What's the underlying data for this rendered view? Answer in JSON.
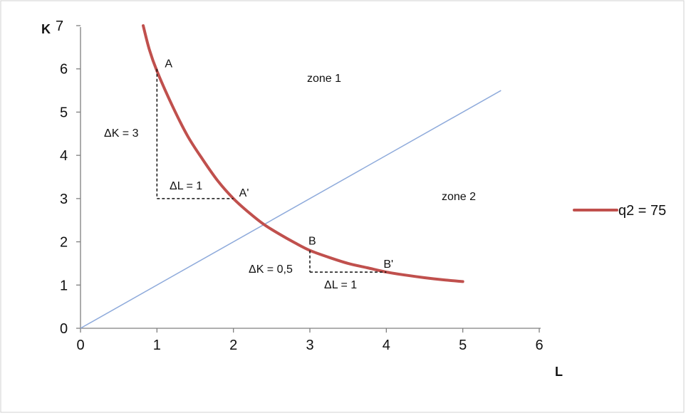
{
  "chart_data": {
    "type": "line",
    "xlabel": "L",
    "ylabel": "K",
    "xlim": [
      0,
      6
    ],
    "ylim": [
      0,
      7
    ],
    "x_ticks": [
      "0",
      "1",
      "2",
      "3",
      "4",
      "5",
      "6"
    ],
    "y_ticks": [
      "0",
      "1",
      "2",
      "3",
      "4",
      "5",
      "6",
      "7"
    ],
    "grid": false,
    "legend_position": "right",
    "series": [
      {
        "name": "q2 = 75",
        "color": "#c0504d",
        "x": [
          0.82,
          0.9,
          1.0,
          1.2,
          1.4,
          1.6,
          1.8,
          2.0,
          2.2,
          2.4,
          2.6,
          2.8,
          3.0,
          3.25,
          3.5,
          3.75,
          4.0,
          4.25,
          4.5,
          4.75,
          5.0
        ],
        "y": [
          7.0,
          6.45,
          5.95,
          5.15,
          4.45,
          3.9,
          3.4,
          3.0,
          2.68,
          2.4,
          2.18,
          1.98,
          1.8,
          1.64,
          1.5,
          1.4,
          1.3,
          1.23,
          1.17,
          1.12,
          1.08
        ]
      },
      {
        "color": "#8eaadb",
        "x": [
          0,
          5.5
        ],
        "y": [
          0,
          5.5
        ]
      }
    ],
    "points": [
      {
        "label": "A",
        "x": 1,
        "y": 6
      },
      {
        "label": "A'",
        "x": 2,
        "y": 3
      },
      {
        "label": "B",
        "x": 3,
        "y": 1.8
      },
      {
        "label": "B'",
        "x": 4,
        "y": 1.3
      }
    ],
    "annotations": {
      "deltaK_A": "ΔK = 3",
      "deltaL_A": "ΔL = 1",
      "deltaK_B": "ΔK = 0,5",
      "deltaL_B": "ΔL = 1",
      "zone1": "zone 1",
      "zone2": "zone 2"
    }
  }
}
